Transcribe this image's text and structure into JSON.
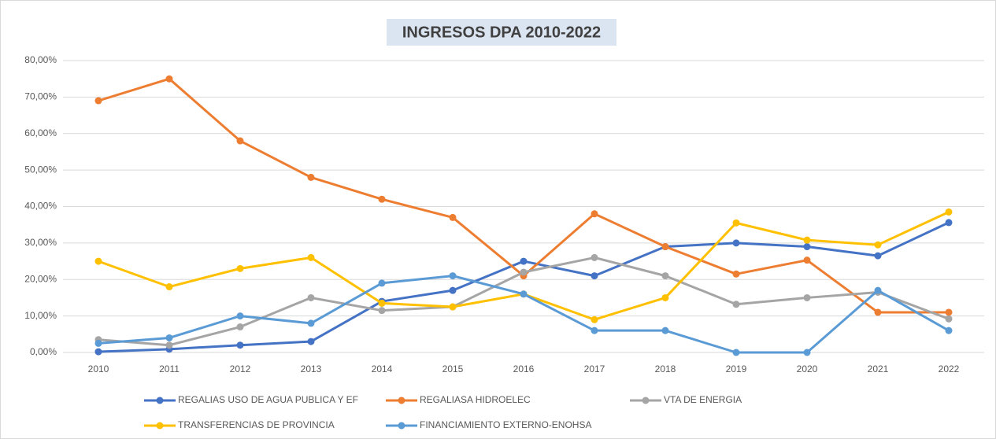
{
  "chart_data": {
    "type": "line",
    "title": "INGRESOS DPA 2010-2022",
    "categories": [
      "2010",
      "2011",
      "2012",
      "2013",
      "2014",
      "2015",
      "2016",
      "2017",
      "2018",
      "2019",
      "2020",
      "2021",
      "2022"
    ],
    "series": [
      {
        "name": "REGALIAS USO DE AGUA PUBLICA Y EF",
        "color": "#4472c4",
        "values": [
          0.2,
          0.9,
          2,
          3,
          14,
          17,
          25,
          21,
          29,
          30,
          29,
          26.5,
          35.6
        ]
      },
      {
        "name": "REGALIASA HIDROELEC",
        "color": "#ed7d31",
        "values": [
          69,
          75,
          58,
          48,
          42,
          37,
          21,
          38,
          29,
          21.5,
          25.3,
          11,
          11
        ]
      },
      {
        "name": "VTA DE ENERGIA",
        "color": "#a5a5a5",
        "values": [
          3.5,
          2,
          7,
          15,
          11.5,
          12.5,
          22,
          26,
          21,
          13.2,
          15,
          16.5,
          9.2
        ]
      },
      {
        "name": "TRANSFERENCIAS DE PROVINCIA",
        "color": "#ffc000",
        "values": [
          25,
          18,
          23,
          26,
          13.5,
          12.5,
          16,
          9,
          15,
          35.5,
          30.8,
          29.5,
          38.5
        ]
      },
      {
        "name": "FINANCIAMIENTO EXTERNO-ENOHSA",
        "color": "#5b9bd5",
        "values": [
          2.5,
          4,
          10,
          8,
          19,
          21,
          16,
          6,
          6,
          0,
          0,
          17,
          6
        ]
      }
    ],
    "ylim": [
      0,
      80
    ],
    "yticks": [
      {
        "value": 0,
        "label": "0,00%"
      },
      {
        "value": 10,
        "label": "10,00%"
      },
      {
        "value": 20,
        "label": "20,00%"
      },
      {
        "value": 30,
        "label": "30,00%"
      },
      {
        "value": 40,
        "label": "40,00%"
      },
      {
        "value": 50,
        "label": "50,00%"
      },
      {
        "value": 60,
        "label": "60,00%"
      },
      {
        "value": 70,
        "label": "70,00%"
      },
      {
        "value": 80,
        "label": "80,00%"
      }
    ],
    "grid": true
  }
}
